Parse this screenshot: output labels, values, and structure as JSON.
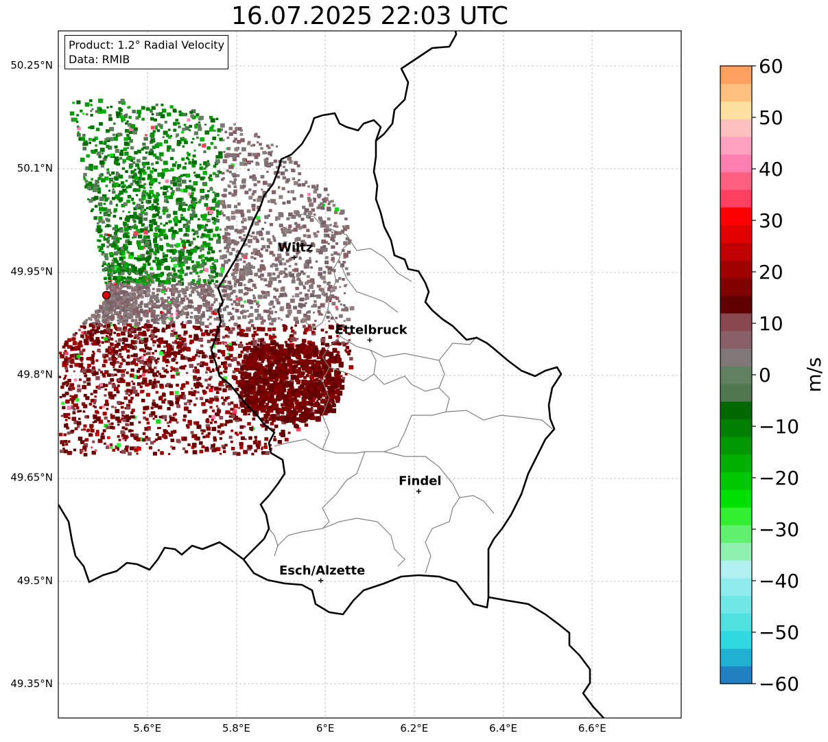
{
  "title": "16.07.2025 22:03 UTC",
  "info": {
    "product": "Product: 1.2° Radial Velocity",
    "data": "Data: RMIB"
  },
  "lat_labels": [
    "50.25°N",
    "50.1°N",
    "49.95°N",
    "49.8°N",
    "49.65°N",
    "49.5°N",
    "49.35°N"
  ],
  "lon_labels": [
    "5.6°E",
    "5.8°E",
    "6°E",
    "6.2°E",
    "6.4°E",
    "6.6°E"
  ],
  "cities": [
    {
      "name": "Wiltz",
      "lon": 5.93,
      "lat": 49.97
    },
    {
      "name": "Ettelbruck",
      "lon": 6.1,
      "lat": 49.85
    },
    {
      "name": "Findel",
      "lon": 6.21,
      "lat": 49.63
    },
    {
      "name": "Esch/Alzette",
      "lon": 5.99,
      "lat": 49.5
    }
  ],
  "radar_site": {
    "lon": 5.51,
    "lat": 49.915
  },
  "colorbar": {
    "label": "m/s",
    "ticks": [
      "60",
      "50",
      "40",
      "30",
      "20",
      "10",
      "0",
      "−10",
      "−20",
      "−30",
      "−40",
      "−50",
      "−60"
    ],
    "range": [
      -60,
      60
    ],
    "colors": [
      "#2080c0",
      "#20b0d0",
      "#30d8e0",
      "#50e0e0",
      "#70e8e8",
      "#90ecec",
      "#b0f0f0",
      "#90f0b0",
      "#60f070",
      "#30f030",
      "#00e000",
      "#00c800",
      "#00b000",
      "#009800",
      "#008000",
      "#006800",
      "#507850",
      "#608060",
      "#807878",
      "#886068",
      "#884850",
      "#600000",
      "#800000",
      "#a00000",
      "#c00000",
      "#e00000",
      "#ff0000",
      "#ff4060",
      "#ff6080",
      "#ff80b0",
      "#ffa0c0",
      "#ffc0c0",
      "#ffe0a0",
      "#ffc080",
      "#ffa060"
    ]
  },
  "map_extent": {
    "lon": [
      5.4,
      6.8
    ],
    "lat": [
      49.3,
      50.3
    ]
  }
}
